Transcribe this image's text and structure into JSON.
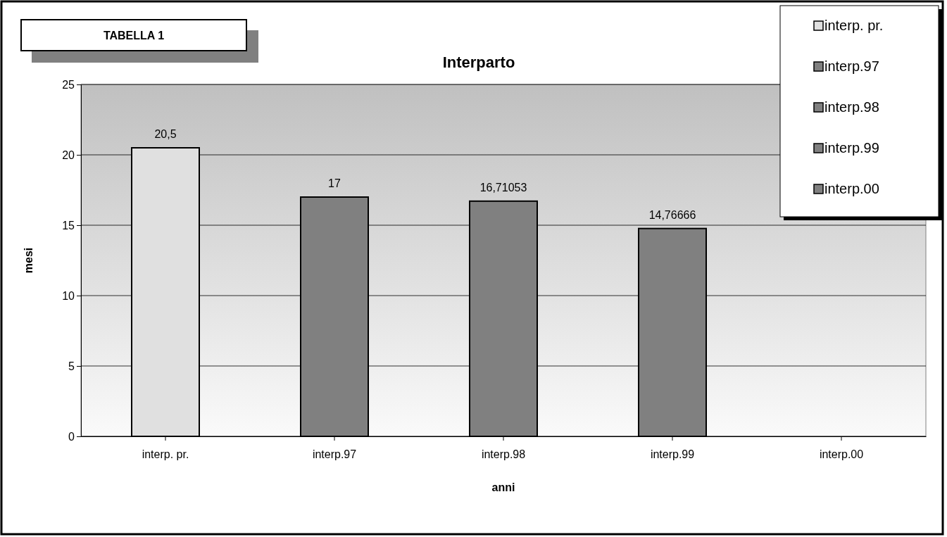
{
  "chart_data": {
    "type": "bar",
    "title": "Interparto",
    "xlabel": "anni",
    "ylabel": "mesi",
    "categories": [
      "interp. pr.",
      "interp.97",
      "interp.98",
      "interp.99",
      "interp.00"
    ],
    "series": [
      {
        "name": "interp. pr.",
        "color": "#e0e0e0",
        "values": [
          20.5,
          null,
          null,
          null,
          null
        ],
        "value_labels": [
          "20,5",
          null,
          null,
          null,
          null
        ]
      },
      {
        "name": "interp.97",
        "color": "#808080",
        "values": [
          null,
          17,
          null,
          null,
          null
        ],
        "value_labels": [
          null,
          "17",
          null,
          null,
          null
        ]
      },
      {
        "name": "interp.98",
        "color": "#808080",
        "values": [
          null,
          null,
          16.71053,
          null,
          null
        ],
        "value_labels": [
          null,
          null,
          "16,71053",
          null,
          null
        ]
      },
      {
        "name": "interp.99",
        "color": "#808080",
        "values": [
          null,
          null,
          null,
          14.76666,
          null
        ],
        "value_labels": [
          null,
          null,
          null,
          "14,76666",
          null
        ]
      },
      {
        "name": "interp.00",
        "color": "#808080",
        "values": [
          null,
          null,
          null,
          null,
          null
        ]
      }
    ],
    "ylim": [
      0,
      25
    ],
    "yticks": [
      0,
      5,
      10,
      15,
      20,
      25
    ],
    "grid": "y",
    "legend": "top right",
    "annotations": [
      "TABELLA 1"
    ]
  }
}
